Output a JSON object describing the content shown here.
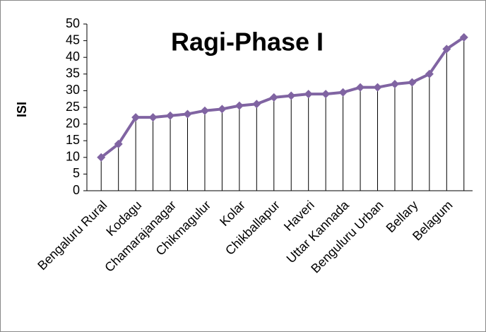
{
  "chart_data": {
    "type": "line",
    "title": "Ragi-Phase I",
    "y_label": "ISI",
    "categories": [
      "Bengaluru Rural",
      null,
      "Kodagu",
      null,
      "Chamarajanagar",
      null,
      "Chikmagulur",
      null,
      "Kolar",
      null,
      "Chikballapur",
      null,
      "Haveri",
      null,
      "Uttar Kannada",
      null,
      "Benguluru Urban",
      null,
      "Bellary",
      null,
      "Belagum",
      null
    ],
    "series": [
      {
        "name": "ISI",
        "color": "#8064a2",
        "values": [
          10,
          14,
          22,
          22,
          22.5,
          23,
          24,
          24.5,
          25.5,
          26,
          28,
          28.5,
          29,
          29,
          29.5,
          31,
          31,
          32,
          32.5,
          35,
          42.5,
          46
        ]
      }
    ],
    "ylim": [
      0,
      50
    ],
    "yticks": [
      0,
      5,
      10,
      15,
      20,
      25,
      30,
      35,
      40,
      45,
      50
    ],
    "drop_lines": true
  }
}
